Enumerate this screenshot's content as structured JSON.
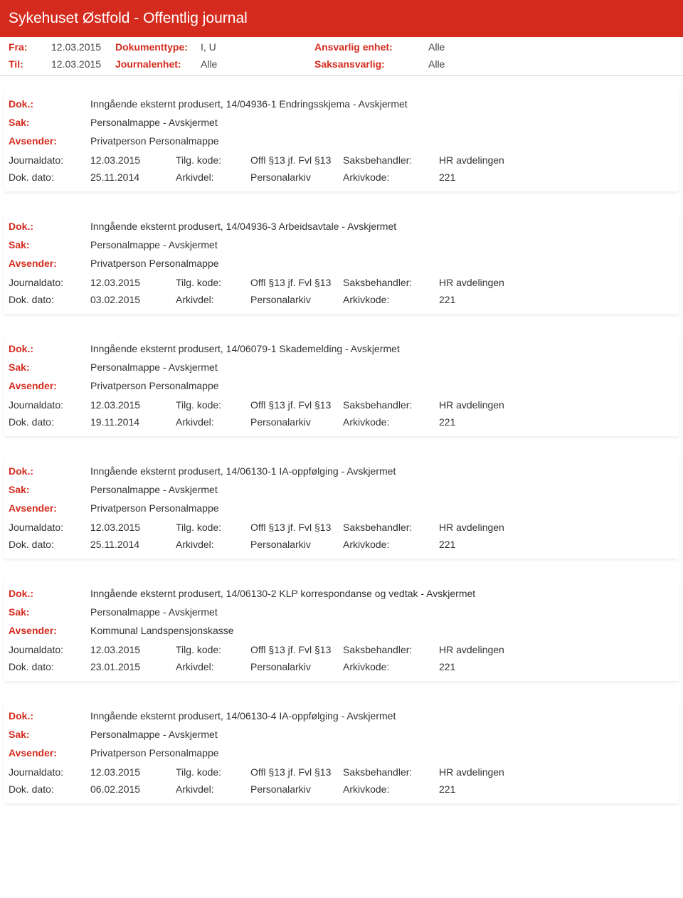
{
  "header": {
    "title": "Sykehuset Østfold - Offentlig journal"
  },
  "filters": {
    "fra_label": "Fra:",
    "fra": "12.03.2015",
    "til_label": "Til:",
    "til": "12.03.2015",
    "doktype_label": "Dokumenttype:",
    "doktype": "I, U",
    "journalenhet_label": "Journalenhet:",
    "journalenhet": "Alle",
    "ansvarlig_label": "Ansvarlig enhet:",
    "ansvarlig": "Alle",
    "saksansvarlig_label": "Saksansvarlig:",
    "saksansvarlig": "Alle"
  },
  "labels": {
    "dok": "Dok.:",
    "sak": "Sak:",
    "avsender": "Avsender:",
    "journaldato": "Journaldato:",
    "dokdato": "Dok. dato:",
    "tilgkode": "Tilg. kode:",
    "arkivdel": "Arkivdel:",
    "saksbehandler": "Saksbehandler:",
    "arkivkode": "Arkivkode:"
  },
  "entries": [
    {
      "dok": "Inngående eksternt produsert, 14/04936-1 Endringsskjema - Avskjermet",
      "sak": "Personalmappe - Avskjermet",
      "avsender": "Privatperson Personalmappe",
      "journaldato": "12.03.2015",
      "tilgkode": "Offl §13 jf. Fvl §13",
      "saksbehandler": "HR avdelingen",
      "dokdato": "25.11.2014",
      "arkivdel": "Personalarkiv",
      "arkivkode": "221"
    },
    {
      "dok": "Inngående eksternt produsert, 14/04936-3 Arbeidsavtale - Avskjermet",
      "sak": "Personalmappe - Avskjermet",
      "avsender": "Privatperson Personalmappe",
      "journaldato": "12.03.2015",
      "tilgkode": "Offl §13 jf. Fvl §13",
      "saksbehandler": "HR avdelingen",
      "dokdato": "03.02.2015",
      "arkivdel": "Personalarkiv",
      "arkivkode": "221"
    },
    {
      "dok": "Inngående eksternt produsert, 14/06079-1 Skademelding - Avskjermet",
      "sak": "Personalmappe - Avskjermet",
      "avsender": "Privatperson Personalmappe",
      "journaldato": "12.03.2015",
      "tilgkode": "Offl §13 jf. Fvl §13",
      "saksbehandler": "HR avdelingen",
      "dokdato": "19.11.2014",
      "arkivdel": "Personalarkiv",
      "arkivkode": "221"
    },
    {
      "dok": "Inngående eksternt produsert, 14/06130-1 IA-oppfølging - Avskjermet",
      "sak": "Personalmappe - Avskjermet",
      "avsender": "Privatperson Personalmappe",
      "journaldato": "12.03.2015",
      "tilgkode": "Offl §13 jf. Fvl §13",
      "saksbehandler": "HR avdelingen",
      "dokdato": "25.11.2014",
      "arkivdel": "Personalarkiv",
      "arkivkode": "221"
    },
    {
      "dok": "Inngående eksternt produsert, 14/06130-2 KLP korrespondanse og vedtak - Avskjermet",
      "sak": "Personalmappe - Avskjermet",
      "avsender": "Kommunal Landspensjonskasse",
      "journaldato": "12.03.2015",
      "tilgkode": "Offl §13 jf. Fvl §13",
      "saksbehandler": "HR avdelingen",
      "dokdato": "23.01.2015",
      "arkivdel": "Personalarkiv",
      "arkivkode": "221"
    },
    {
      "dok": "Inngående eksternt produsert, 14/06130-4 IA-oppfølging - Avskjermet",
      "sak": "Personalmappe - Avskjermet",
      "avsender": "Privatperson Personalmappe",
      "journaldato": "12.03.2015",
      "tilgkode": "Offl §13 jf. Fvl §13",
      "saksbehandler": "HR avdelingen",
      "dokdato": "06.02.2015",
      "arkivdel": "Personalarkiv",
      "arkivkode": "221"
    }
  ]
}
